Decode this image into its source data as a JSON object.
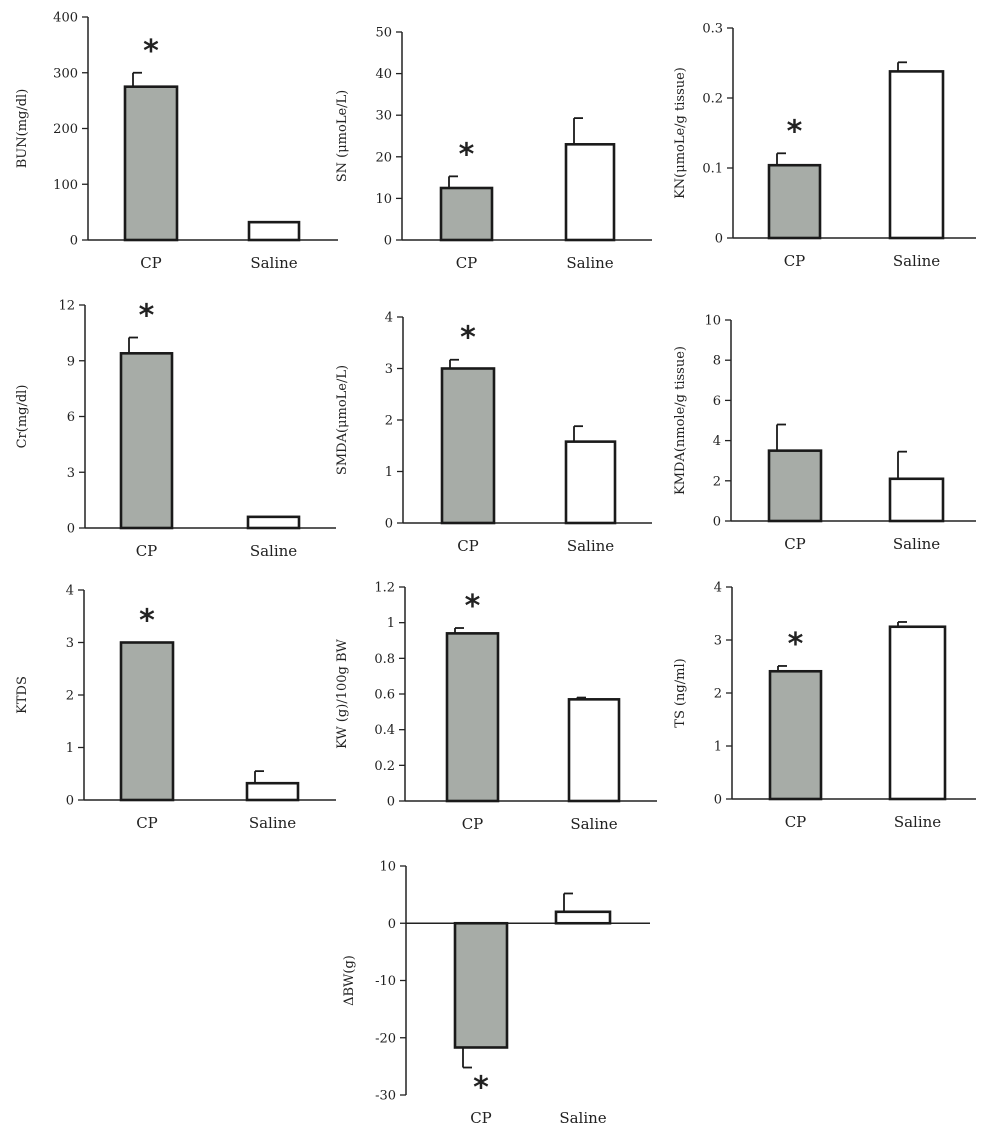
{
  "chart_data": [
    {
      "type": "bar",
      "ylabel": "BUN(mg/dl)",
      "categories": [
        "CP",
        "Saline"
      ],
      "values": [
        275,
        32
      ],
      "errors": [
        25,
        0
      ],
      "significant": [
        true,
        false
      ],
      "ylim": [
        0,
        400
      ],
      "yticks": [
        0,
        100,
        200,
        300,
        400
      ]
    },
    {
      "type": "bar",
      "ylabel": "SN (μmoLe/L)",
      "categories": [
        "CP",
        "Saline"
      ],
      "values": [
        12.5,
        23
      ],
      "errors": [
        2.8,
        6.3
      ],
      "significant": [
        true,
        false
      ],
      "ylim": [
        0,
        50
      ],
      "yticks": [
        0,
        10,
        20,
        30,
        40,
        50
      ]
    },
    {
      "type": "bar",
      "ylabel": "KN(μmoLe/g tissue)",
      "categories": [
        "CP",
        "Saline"
      ],
      "values": [
        0.104,
        0.238
      ],
      "errors": [
        0.017,
        0.013
      ],
      "significant": [
        true,
        false
      ],
      "ylim": [
        0,
        0.3
      ],
      "yticks": [
        0,
        0.1,
        0.2,
        0.3
      ]
    },
    {
      "type": "bar",
      "ylabel": "Cr(mg/dl)",
      "categories": [
        "CP",
        "Saline"
      ],
      "values": [
        9.4,
        0.6
      ],
      "errors": [
        0.85,
        0
      ],
      "significant": [
        true,
        false
      ],
      "ylim": [
        0,
        12
      ],
      "yticks": [
        0,
        3,
        6,
        9,
        12
      ]
    },
    {
      "type": "bar",
      "ylabel": "SMDA(μmoLe/L)",
      "categories": [
        "CP",
        "Saline"
      ],
      "values": [
        3.0,
        1.58
      ],
      "errors": [
        0.17,
        0.3
      ],
      "significant": [
        true,
        false
      ],
      "ylim": [
        0,
        4
      ],
      "yticks": [
        0,
        1,
        2,
        3,
        4
      ]
    },
    {
      "type": "bar",
      "ylabel": "KMDA(nmole/g tissue)",
      "categories": [
        "CP",
        "Saline"
      ],
      "values": [
        3.5,
        2.1
      ],
      "errors": [
        1.3,
        1.35
      ],
      "significant": [
        false,
        false
      ],
      "ylim": [
        0,
        10
      ],
      "yticks": [
        0,
        2,
        4,
        6,
        8,
        10
      ]
    },
    {
      "type": "bar",
      "ylabel": "KTDS",
      "categories": [
        "CP",
        "Saline"
      ],
      "values": [
        3.0,
        0.32
      ],
      "errors": [
        0,
        0.23
      ],
      "significant": [
        true,
        false
      ],
      "ylim": [
        0,
        4
      ],
      "yticks": [
        0,
        1,
        2,
        3,
        4
      ]
    },
    {
      "type": "bar",
      "ylabel": "KW (g)/100g BW",
      "categories": [
        "CP",
        "Saline"
      ],
      "values": [
        0.94,
        0.57
      ],
      "errors": [
        0.03,
        0.01
      ],
      "significant": [
        true,
        false
      ],
      "ylim": [
        0,
        1.2
      ],
      "yticks": [
        0,
        0.2,
        0.4,
        0.6,
        0.8,
        1,
        1.2
      ]
    },
    {
      "type": "bar",
      "ylabel": "TS (ng/ml)",
      "categories": [
        "CP",
        "Saline"
      ],
      "values": [
        2.41,
        3.25
      ],
      "errors": [
        0.1,
        0.09
      ],
      "significant": [
        true,
        false
      ],
      "ylim": [
        0,
        4
      ],
      "yticks": [
        0,
        1,
        2,
        3,
        4
      ]
    },
    {
      "type": "bar",
      "ylabel": "ΔBW(g)",
      "categories": [
        "CP",
        "Saline"
      ],
      "values": [
        -21.7,
        2.0
      ],
      "errors": [
        3.5,
        3.2
      ],
      "significant": [
        true,
        false
      ],
      "ylim": [
        -30,
        10
      ],
      "yticks": [
        -30,
        -20,
        -10,
        0,
        10
      ]
    }
  ],
  "style": {
    "cp_fill": "#a7aca7",
    "saline_fill": "#ffffff",
    "bar_stroke": "#1a1a1a",
    "axis_color": "#222222",
    "marker_text": "*"
  }
}
